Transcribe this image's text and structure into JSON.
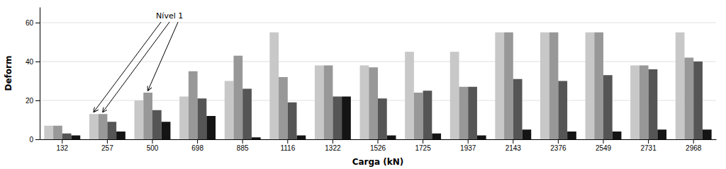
{
  "chart_data": {
    "type": "bar",
    "xlabel": "Carga (kN)",
    "ylabel": "Deform",
    "categories": [
      "132",
      "257",
      "500",
      "698",
      "885",
      "1116",
      "1322",
      "1526",
      "1725",
      "1937",
      "2143",
      "2376",
      "2549",
      "2731",
      "2968"
    ],
    "series": [
      {
        "color": "#c8c8c8",
        "values": [
          7,
          13,
          20,
          22,
          30,
          55,
          38,
          38,
          45,
          45,
          55,
          55,
          55,
          38,
          55
        ]
      },
      {
        "color": "#989898",
        "values": [
          7,
          13,
          24,
          35,
          43,
          32,
          38,
          37,
          24,
          27,
          55,
          55,
          55,
          38,
          42
        ]
      },
      {
        "color": "#555555",
        "values": [
          3,
          9,
          15,
          21,
          26,
          19,
          22,
          21,
          25,
          27,
          31,
          30,
          33,
          36,
          40
        ]
      },
      {
        "color": "#141414",
        "values": [
          2,
          4,
          9,
          12,
          1,
          2,
          22,
          2,
          3,
          2,
          5,
          4,
          4,
          5,
          5
        ]
      }
    ],
    "ylim": [
      0,
      68
    ],
    "yticks": [
      0,
      20,
      40,
      60
    ],
    "grid": true,
    "annotations": [
      {
        "text": "Nível 1",
        "targets": [
          {
            "category": "257",
            "series": 0
          },
          {
            "category": "257",
            "series": 1
          },
          {
            "category": "500",
            "series": 1
          }
        ]
      }
    ]
  }
}
